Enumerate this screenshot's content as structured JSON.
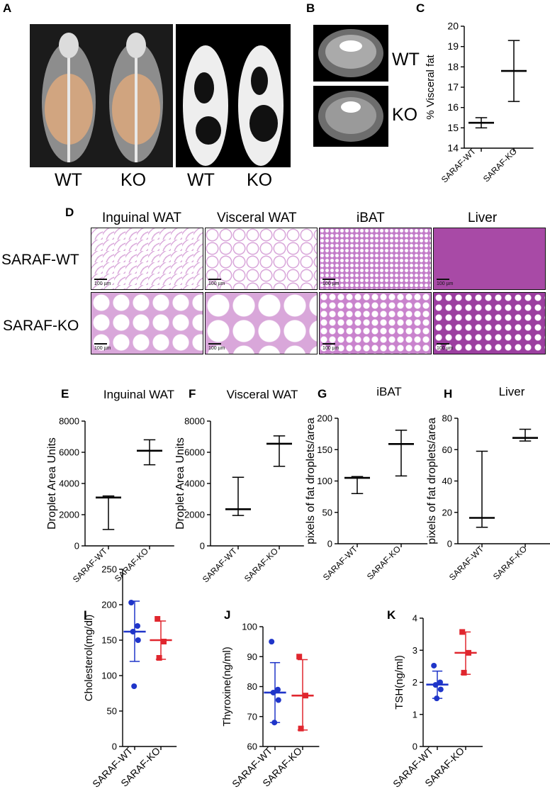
{
  "panels": {
    "A": {
      "letter": "A",
      "labels": [
        "WT",
        "KO",
        "WT",
        "KO"
      ]
    },
    "B": {
      "letter": "B",
      "labels": [
        "WT",
        "KO"
      ]
    },
    "D": {
      "letter": "D",
      "columns": [
        "Inguinal WAT",
        "Visceral WAT",
        "iBAT",
        "Liver"
      ],
      "rows": [
        "SARAF-WT",
        "SARAF-KO"
      ],
      "scale_text": "100 µm"
    }
  },
  "colors": {
    "wt_dot": "#1f35c9",
    "ko_dot": "#e0262e",
    "tissue_pink": "#e6b6e4",
    "liver": "#a84aa6"
  },
  "chart_data": [
    {
      "panel": "C",
      "type": "scatter",
      "title": "",
      "ylabel": "% Visceral fat",
      "ylim": [
        14,
        20
      ],
      "yticks": [
        "14",
        "15",
        "16",
        "17",
        "18",
        "19",
        "20"
      ],
      "categories": [
        "SARAF-WT",
        "SARAF-KO"
      ],
      "summary": [
        {
          "center": 15.25,
          "low": 15.0,
          "high": 15.5
        },
        {
          "center": 17.8,
          "low": 16.3,
          "high": 19.3
        }
      ]
    },
    {
      "panel": "E",
      "type": "scatter",
      "title": "Inguinal WAT",
      "ylabel": "Droplet Area Units",
      "ylim": [
        0,
        8000
      ],
      "yticks": [
        "0",
        "2000",
        "4000",
        "6000",
        "8000"
      ],
      "categories": [
        "SARAF-WT",
        "SARAF-KO"
      ],
      "significance": "*",
      "summary": [
        {
          "center": 3100,
          "low": 1050,
          "high": 3200
        },
        {
          "center": 6100,
          "low": 5200,
          "high": 6800
        }
      ]
    },
    {
      "panel": "F",
      "type": "scatter",
      "title": "Visceral WAT",
      "ylabel": "Droplet Area Units",
      "ylim": [
        0,
        8000
      ],
      "yticks": [
        "0",
        "2000",
        "4000",
        "6000",
        "8000"
      ],
      "categories": [
        "SARAF-WT",
        "SARAF-KO"
      ],
      "significance": "*",
      "summary": [
        {
          "center": 2350,
          "low": 1950,
          "high": 4400
        },
        {
          "center": 6550,
          "low": 5100,
          "high": 7050
        }
      ]
    },
    {
      "panel": "G",
      "type": "scatter",
      "title": "iBAT",
      "ylabel": "pixels of fat droplets/area",
      "ylim": [
        0,
        200
      ],
      "yticks": [
        "0",
        "50",
        "100",
        "150",
        "200"
      ],
      "categories": [
        "SARAF-WT",
        "SARAF-KO"
      ],
      "significance": "*",
      "summary": [
        {
          "center": 105,
          "low": 80,
          "high": 107
        },
        {
          "center": 159,
          "low": 108,
          "high": 181
        }
      ]
    },
    {
      "panel": "H",
      "type": "scatter",
      "title": "Liver",
      "ylabel": "pixels of fat droplets/area",
      "ylim": [
        0,
        80
      ],
      "yticks": [
        "0",
        "20",
        "40",
        "60",
        "80"
      ],
      "categories": [
        "SARAF-WT",
        "SARAF-KO"
      ],
      "significance": "*",
      "summary": [
        {
          "center": 16.5,
          "low": 10.5,
          "high": 59
        },
        {
          "center": 67.5,
          "low": 65.5,
          "high": 73
        }
      ]
    },
    {
      "panel": "I",
      "type": "scatter",
      "title": "",
      "ylabel": "Cholesterol(mg/dl)",
      "ylim": [
        0,
        250
      ],
      "yticks": [
        "0",
        "50",
        "100",
        "150",
        "200",
        "250"
      ],
      "categories": [
        "SARAF-WT",
        "SARAF-KO"
      ],
      "summary": [
        {
          "center": 162,
          "low": 120,
          "high": 205
        },
        {
          "center": 150,
          "low": 123,
          "high": 177
        }
      ],
      "points": [
        [
          203,
          170,
          162,
          150,
          85
        ],
        [
          180,
          148,
          125
        ]
      ]
    },
    {
      "panel": "J",
      "type": "scatter",
      "title": "",
      "ylabel": "Thyroxine(ng/ml)",
      "ylim": [
        60,
        100
      ],
      "yticks": [
        "60",
        "70",
        "80",
        "90",
        "100"
      ],
      "categories": [
        "SARAF-WT",
        "SARAF-KO"
      ],
      "summary": [
        {
          "center": 78,
          "low": 68,
          "high": 88
        },
        {
          "center": 77,
          "low": 65.5,
          "high": 89
        }
      ],
      "points": [
        [
          95,
          79,
          78,
          75.5,
          68
        ],
        [
          90,
          77,
          66
        ]
      ]
    },
    {
      "panel": "K",
      "type": "scatter",
      "title": "",
      "ylabel": "TSH(ng/ml)",
      "ylim": [
        0,
        4
      ],
      "yticks": [
        "0",
        "1",
        "2",
        "3",
        "4"
      ],
      "categories": [
        "SARAF-WT",
        "SARAF-KO"
      ],
      "significance": "*",
      "summary": [
        {
          "center": 1.93,
          "low": 1.5,
          "high": 2.35
        },
        {
          "center": 2.92,
          "low": 2.25,
          "high": 3.57
        }
      ],
      "points": [
        [
          2.52,
          2.0,
          1.92,
          1.78,
          1.5
        ],
        [
          3.57,
          2.92,
          2.3
        ]
      ]
    }
  ]
}
